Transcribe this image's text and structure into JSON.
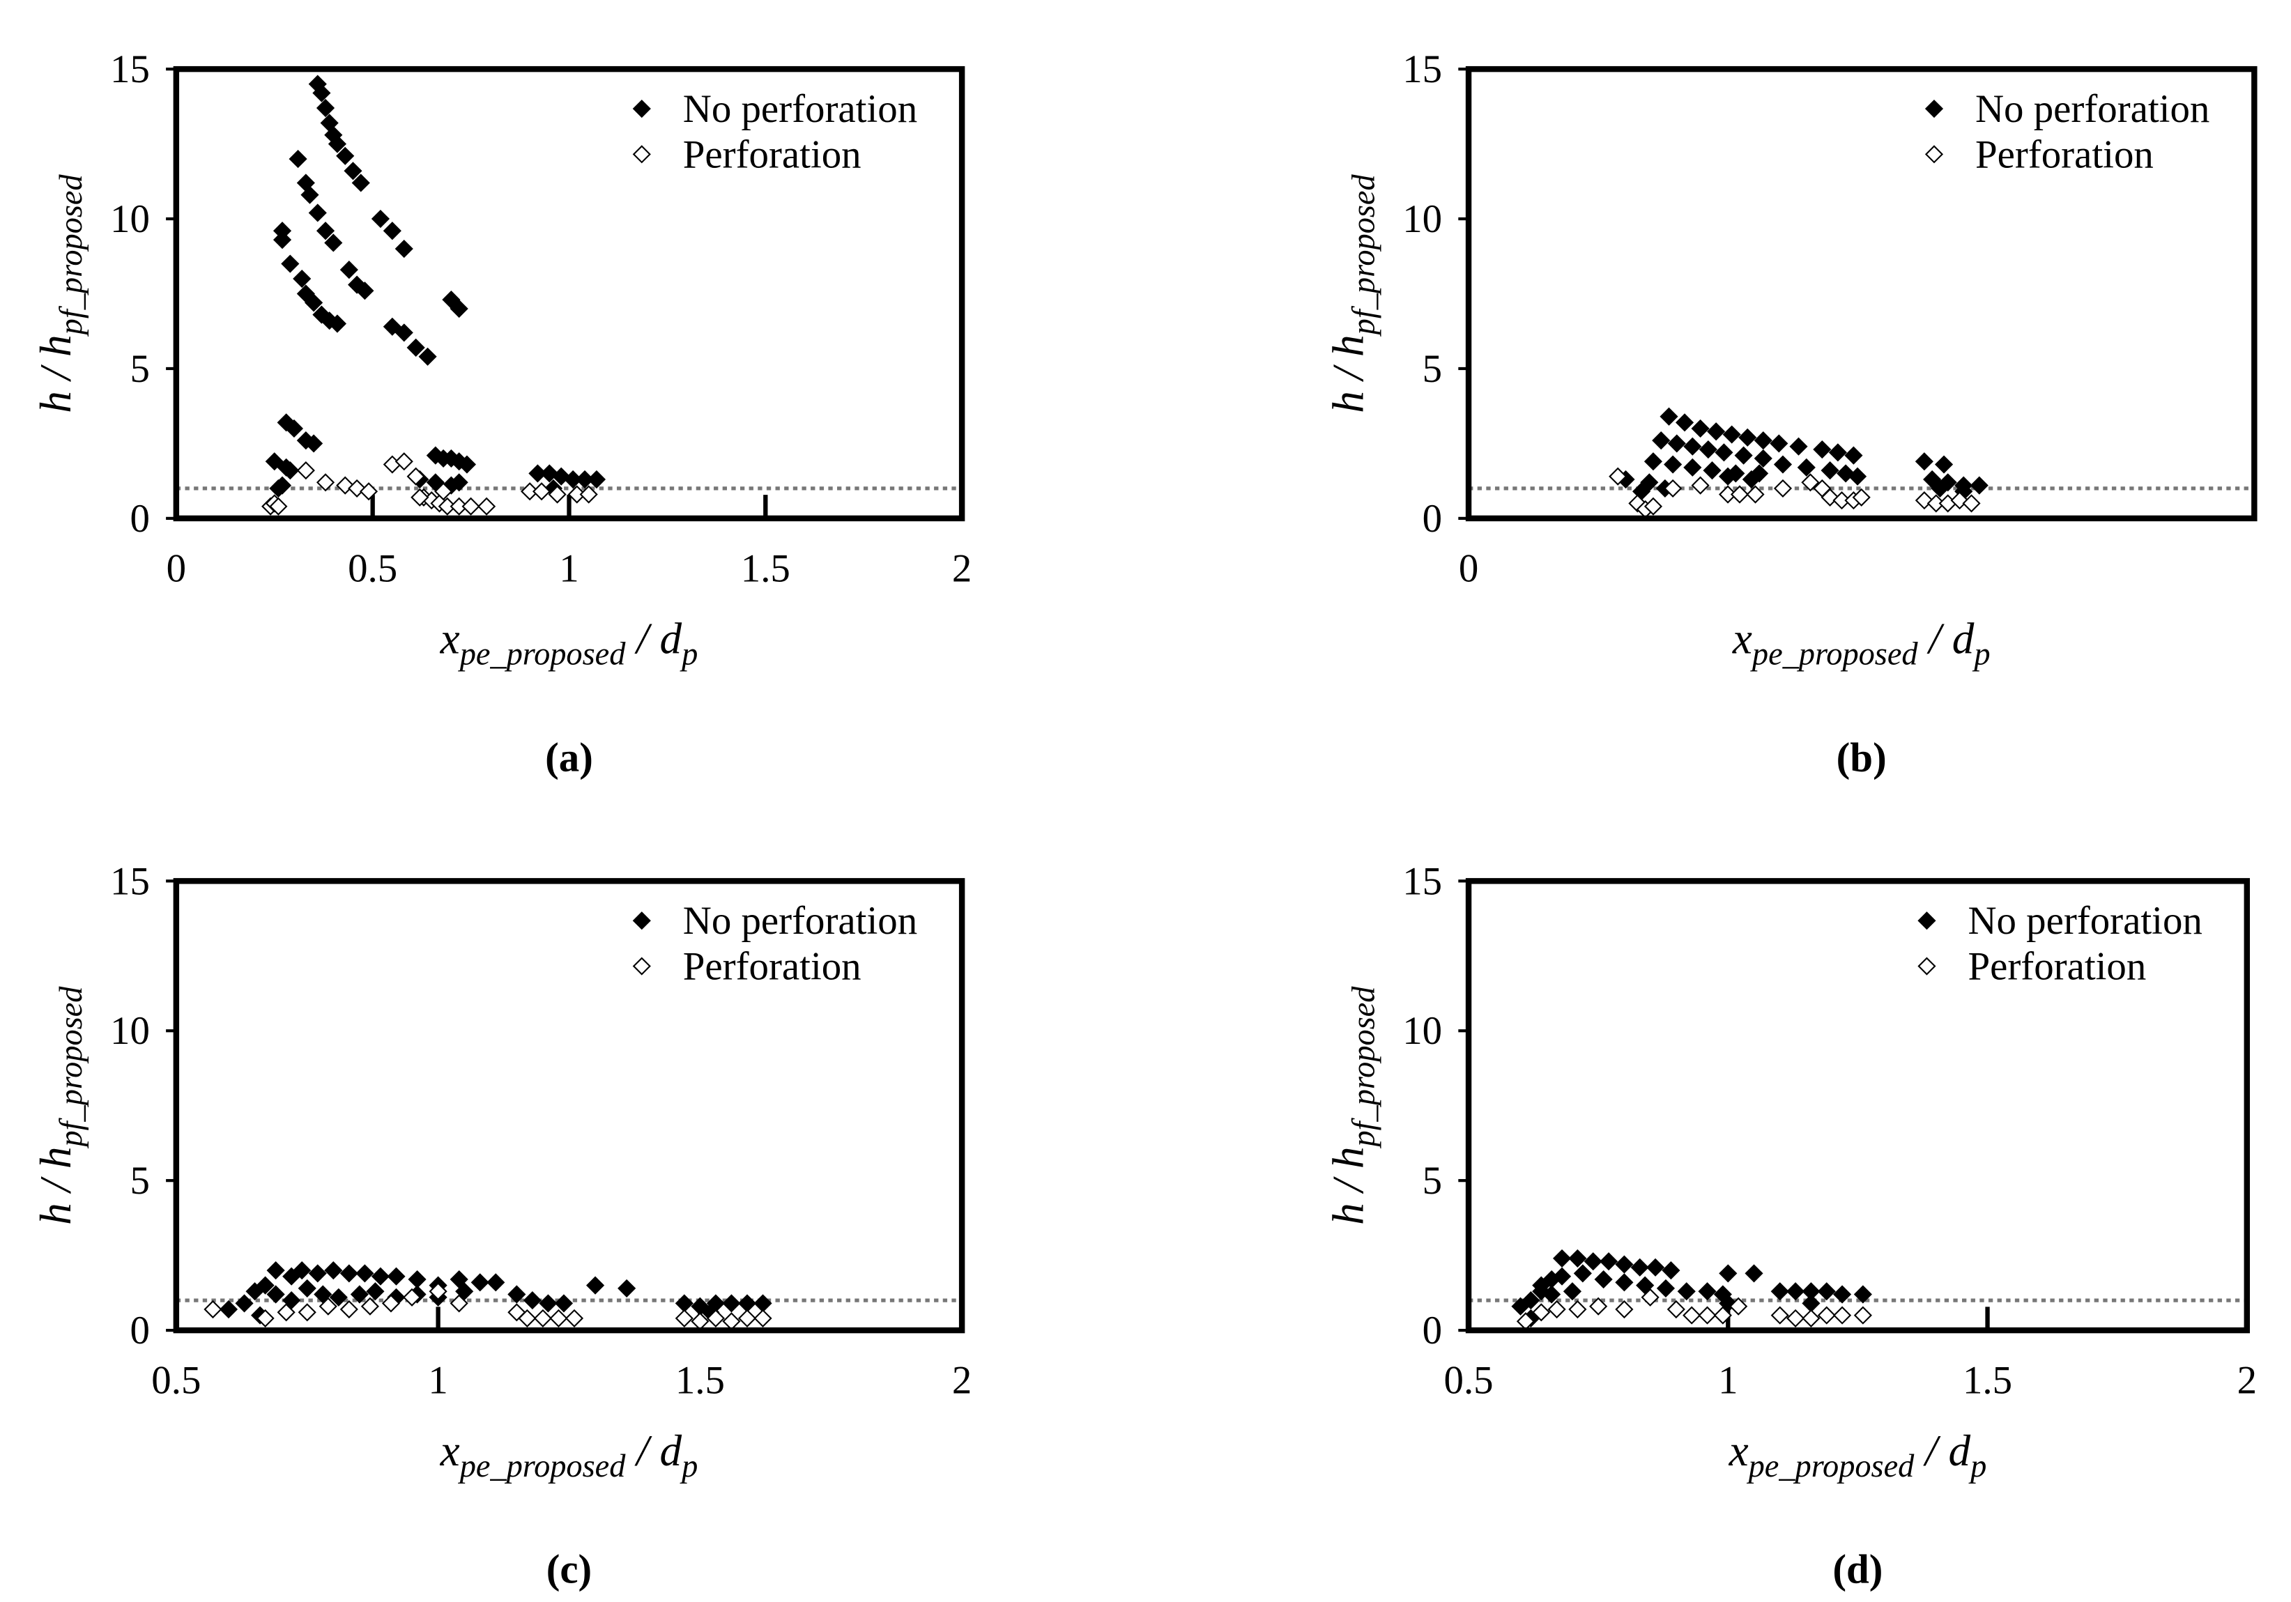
{
  "chart_data": [
    {
      "type": "scatter",
      "caption": "(a)",
      "xlabel": [
        "x",
        "pe_proposed",
        " / d",
        "p"
      ],
      "ylabel": [
        "h / h",
        "pf_proposed"
      ],
      "xlim": [
        0,
        2
      ],
      "xticks": [
        0,
        0.5,
        1,
        1.5,
        2
      ],
      "ylim": [
        0,
        15
      ],
      "yticks": [
        0,
        5,
        10,
        15
      ],
      "ref_line": 1,
      "series": [
        {
          "name": "No perforation",
          "color": "#000000",
          "filled": true,
          "x": [
            0.36,
            0.37,
            0.38,
            0.39,
            0.4,
            0.41,
            0.43,
            0.45,
            0.47,
            0.52,
            0.55,
            0.58,
            0.31,
            0.33,
            0.34,
            0.36,
            0.38,
            0.4,
            0.44,
            0.46,
            0.48,
            0.27,
            0.27,
            0.29,
            0.32,
            0.33,
            0.35,
            0.37,
            0.39,
            0.41,
            0.55,
            0.58,
            0.61,
            0.64,
            0.7,
            0.72,
            0.28,
            0.3,
            0.33,
            0.35,
            0.25,
            0.28,
            0.29,
            0.26,
            0.27,
            0.66,
            0.68,
            0.7,
            0.72,
            0.74,
            0.62,
            0.66,
            0.7,
            0.72,
            0.92,
            0.95,
            0.98,
            1.01,
            1.04,
            1.07,
            0.96
          ],
          "values": [
            14.5,
            14.2,
            13.7,
            13.2,
            12.8,
            12.5,
            12.1,
            11.6,
            11.2,
            10.0,
            9.6,
            9.0,
            12.0,
            11.2,
            10.8,
            10.2,
            9.6,
            9.2,
            8.3,
            7.8,
            7.6,
            9.6,
            9.3,
            8.5,
            8.0,
            7.5,
            7.2,
            6.8,
            6.6,
            6.5,
            6.4,
            6.2,
            5.7,
            5.4,
            7.3,
            7.0,
            3.2,
            3.0,
            2.6,
            2.5,
            1.9,
            1.7,
            1.6,
            1.0,
            1.1,
            2.1,
            2.0,
            2.0,
            1.9,
            1.8,
            1.3,
            1.2,
            1.1,
            1.2,
            1.5,
            1.5,
            1.4,
            1.3,
            1.3,
            1.3,
            1.0
          ]
        },
        {
          "name": "Perforation",
          "color": "#000000",
          "filled": false,
          "x": [
            0.24,
            0.25,
            0.26,
            0.33,
            0.38,
            0.43,
            0.46,
            0.49,
            0.55,
            0.58,
            0.61,
            0.63,
            0.65,
            0.67,
            0.69,
            0.72,
            0.75,
            0.79,
            0.62,
            0.68,
            0.9,
            0.93,
            0.97,
            1.02,
            1.05
          ],
          "values": [
            0.4,
            0.5,
            0.4,
            1.6,
            1.2,
            1.1,
            1.0,
            0.9,
            1.8,
            1.9,
            1.4,
            0.7,
            0.6,
            0.5,
            0.4,
            0.4,
            0.4,
            0.4,
            0.7,
            0.9,
            0.9,
            0.9,
            0.8,
            0.8,
            0.8
          ]
        }
      ]
    },
    {
      "type": "scatter",
      "caption": "(b)",
      "xlabel": [
        "x",
        "pe_proposed",
        " / d",
        "p"
      ],
      "ylabel": [
        "h / h",
        "pf_proposed"
      ],
      "xlim": [
        0,
        2
      ],
      "xticks": [
        0
      ],
      "ylim": [
        0,
        15
      ],
      "yticks": [
        0,
        5,
        10,
        15
      ],
      "ref_line": 1,
      "series": [
        {
          "name": "No perforation",
          "color": "#000000",
          "filled": true,
          "x": [
            0.51,
            0.55,
            0.59,
            0.63,
            0.67,
            0.71,
            0.75,
            0.79,
            0.84,
            0.9,
            0.94,
            0.98,
            0.49,
            0.53,
            0.57,
            0.61,
            0.65,
            0.7,
            0.75,
            0.47,
            0.52,
            0.57,
            0.62,
            0.68,
            0.74,
            0.8,
            0.86,
            0.92,
            0.96,
            0.99,
            0.4,
            0.44,
            0.46,
            0.5,
            1.16,
            1.21,
            1.18,
            1.22,
            1.26,
            1.3,
            1.2,
            1.26,
            0.66,
            0.72
          ],
          "values": [
            3.4,
            3.2,
            3.0,
            2.9,
            2.8,
            2.7,
            2.6,
            2.5,
            2.4,
            2.3,
            2.2,
            2.1,
            2.6,
            2.5,
            2.4,
            2.3,
            2.2,
            2.1,
            2.0,
            1.9,
            1.8,
            1.7,
            1.6,
            1.5,
            1.5,
            1.8,
            1.7,
            1.6,
            1.5,
            1.4,
            1.3,
            0.9,
            1.2,
            1.0,
            1.9,
            1.8,
            1.3,
            1.2,
            1.1,
            1.1,
            1.0,
            0.9,
            1.4,
            1.3
          ]
        },
        {
          "name": "Perforation",
          "color": "#000000",
          "filled": false,
          "x": [
            0.38,
            0.43,
            0.45,
            0.47,
            0.52,
            0.59,
            0.66,
            0.69,
            0.73,
            0.8,
            0.87,
            0.92,
            0.95,
            0.98,
            1.0,
            1.16,
            1.19,
            1.22,
            1.25,
            1.28,
            0.9
          ],
          "values": [
            1.4,
            0.5,
            0.3,
            0.4,
            1.0,
            1.1,
            0.8,
            0.8,
            0.8,
            1.0,
            1.2,
            0.7,
            0.6,
            0.6,
            0.7,
            0.6,
            0.5,
            0.5,
            0.6,
            0.5,
            1.0
          ]
        }
      ]
    },
    {
      "type": "scatter",
      "caption": "(c)",
      "xlabel": [
        "x",
        "pe_proposed",
        " / d",
        "p"
      ],
      "ylabel": [
        "h / h",
        "pf_proposed"
      ],
      "xlim": [
        0.5,
        2
      ],
      "xticks": [
        0.5,
        1,
        1.5,
        2
      ],
      "ylim": [
        0,
        15
      ],
      "yticks": [
        0,
        5,
        10,
        15
      ],
      "ref_line": 1,
      "series": [
        {
          "name": "No perforation",
          "color": "#000000",
          "filled": true,
          "x": [
            0.6,
            0.63,
            0.65,
            0.67,
            0.69,
            0.72,
            0.74,
            0.77,
            0.8,
            0.83,
            0.86,
            0.89,
            0.92,
            0.96,
            1.0,
            1.04,
            1.08,
            1.11,
            1.15,
            1.18,
            1.21,
            1.24,
            1.3,
            1.36,
            0.66,
            0.69,
            0.72,
            0.75,
            0.78,
            0.81,
            0.85,
            0.88,
            0.92,
            0.96,
            1.0,
            1.05,
            1.47,
            1.5,
            1.53,
            1.56,
            1.59,
            1.62,
            1.52
          ],
          "values": [
            0.7,
            0.9,
            1.3,
            1.5,
            2.0,
            1.8,
            2.0,
            1.9,
            2.0,
            1.9,
            1.9,
            1.8,
            1.8,
            1.7,
            1.5,
            1.7,
            1.6,
            1.6,
            1.2,
            1.0,
            0.9,
            0.9,
            1.5,
            1.4,
            0.5,
            1.2,
            1.0,
            1.4,
            1.2,
            1.1,
            1.2,
            1.3,
            1.1,
            1.2,
            1.1,
            1.3,
            0.9,
            0.8,
            0.9,
            0.9,
            0.9,
            0.9,
            0.6
          ]
        },
        {
          "name": "Perforation",
          "color": "#000000",
          "filled": false,
          "x": [
            0.57,
            0.67,
            0.71,
            0.75,
            0.79,
            0.83,
            0.87,
            0.91,
            0.95,
            1.0,
            1.04,
            1.15,
            1.17,
            1.2,
            1.23,
            1.26,
            1.47,
            1.5,
            1.53,
            1.56,
            1.59,
            1.62
          ],
          "values": [
            0.7,
            0.4,
            0.6,
            0.6,
            0.8,
            0.7,
            0.8,
            0.9,
            1.1,
            1.3,
            0.9,
            0.6,
            0.4,
            0.4,
            0.4,
            0.4,
            0.4,
            0.3,
            0.4,
            0.3,
            0.4,
            0.4
          ]
        }
      ]
    },
    {
      "type": "scatter",
      "caption": "(d)",
      "xlabel": [
        "x",
        "pe_proposed",
        " / d",
        "p"
      ],
      "ylabel": [
        "h / h",
        "pf_proposed"
      ],
      "xlim": [
        0.5,
        2
      ],
      "xticks": [
        0.5,
        1,
        1.5,
        2
      ],
      "ylim": [
        0,
        15
      ],
      "yticks": [
        0,
        5,
        10,
        15
      ],
      "ref_line": 1,
      "series": [
        {
          "name": "No perforation",
          "color": "#000000",
          "filled": true,
          "x": [
            0.6,
            0.62,
            0.64,
            0.66,
            0.68,
            0.71,
            0.74,
            0.77,
            0.8,
            0.83,
            0.86,
            0.89,
            0.64,
            0.68,
            0.72,
            0.76,
            0.8,
            0.84,
            0.88,
            0.92,
            0.96,
            0.99,
            1.0,
            1.05,
            1.0,
            1.1,
            1.13,
            1.16,
            1.19,
            1.22,
            1.26,
            1.16,
            0.62,
            0.66,
            0.7
          ],
          "values": [
            0.8,
            1.0,
            1.3,
            1.7,
            2.4,
            2.4,
            2.3,
            2.3,
            2.2,
            2.1,
            2.1,
            2.0,
            1.5,
            1.8,
            1.9,
            1.7,
            1.6,
            1.5,
            1.4,
            1.3,
            1.3,
            1.2,
            1.9,
            1.9,
            0.9,
            1.3,
            1.3,
            1.3,
            1.3,
            1.2,
            1.2,
            0.9,
            0.4,
            1.2,
            1.3
          ]
        },
        {
          "name": "Perforation",
          "color": "#000000",
          "filled": false,
          "x": [
            0.61,
            0.64,
            0.67,
            0.71,
            0.75,
            0.8,
            0.85,
            0.9,
            0.93,
            0.96,
            0.99,
            1.1,
            1.13,
            1.16,
            1.19,
            1.22,
            1.26,
            1.02
          ],
          "values": [
            0.3,
            0.6,
            0.7,
            0.7,
            0.8,
            0.7,
            1.1,
            0.7,
            0.5,
            0.5,
            0.5,
            0.5,
            0.4,
            0.4,
            0.5,
            0.5,
            0.5,
            0.8
          ]
        }
      ]
    }
  ]
}
